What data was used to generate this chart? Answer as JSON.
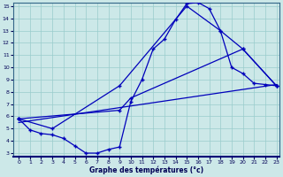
{
  "xlabel": "Graphe des températures (°c)",
  "bg_color": "#cce8e8",
  "grid_color": "#99cccc",
  "line_color": "#0000bb",
  "curve1_x": [
    0,
    1,
    2,
    3,
    4,
    5,
    6,
    7,
    8,
    9,
    10,
    11,
    12,
    13,
    14,
    15,
    16,
    17,
    18,
    19,
    20,
    21,
    22,
    23
  ],
  "curve1_y": [
    5.8,
    4.9,
    4.6,
    4.5,
    4.2,
    3.6,
    3.0,
    3.0,
    3.3,
    3.5,
    7.2,
    9.0,
    11.5,
    12.3,
    13.9,
    15.2,
    15.3,
    14.8,
    13.0,
    10.0,
    9.5,
    8.7,
    8.6,
    8.5
  ],
  "curve2_x": [
    0,
    3,
    9,
    15,
    18,
    20,
    23
  ],
  "curve2_y": [
    5.8,
    5.0,
    8.5,
    15.0,
    13.0,
    11.5,
    8.5
  ],
  "curve3_x": [
    0,
    9,
    10,
    20,
    23
  ],
  "curve3_y": [
    5.8,
    6.5,
    7.5,
    11.5,
    8.5
  ],
  "curve4_x": [
    0,
    23
  ],
  "curve4_y": [
    5.5,
    8.6
  ],
  "ylim": [
    3.0,
    15.0
  ],
  "xlim": [
    0,
    23
  ],
  "yticks": [
    3,
    4,
    5,
    6,
    7,
    8,
    9,
    10,
    11,
    12,
    13,
    14,
    15
  ],
  "xticks": [
    0,
    1,
    2,
    3,
    4,
    5,
    6,
    7,
    8,
    9,
    10,
    11,
    12,
    13,
    14,
    15,
    16,
    17,
    18,
    19,
    20,
    21,
    22,
    23
  ]
}
